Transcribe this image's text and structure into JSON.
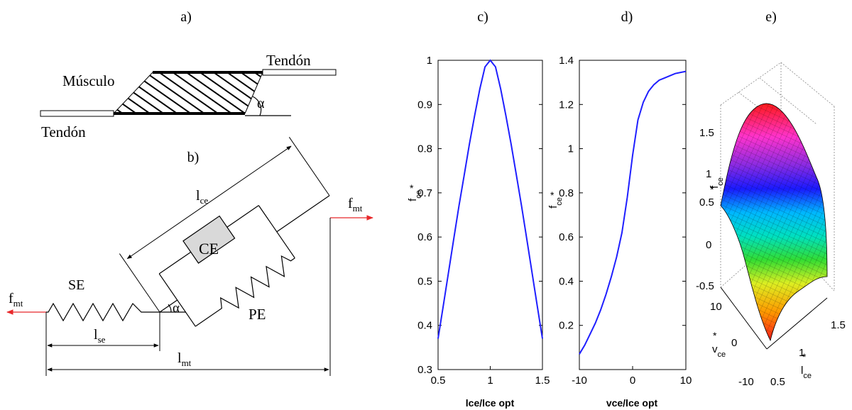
{
  "panels": {
    "a": {
      "label": "a)",
      "muscle_label": "Músculo",
      "tendon_right_label": "Tendón",
      "tendon_left_label": "Tendón",
      "angle_label": "α"
    },
    "b": {
      "label": "b)",
      "lce": {
        "main": "l",
        "sub": "ce"
      },
      "fmt_right": {
        "main": "f",
        "sub": "mt"
      },
      "fmt_left": {
        "main": "f",
        "sub": "mt"
      },
      "se_label": "SE",
      "ce_label": "CE",
      "pe_label": "PE",
      "angle_label": "α",
      "lse": {
        "main": "l",
        "sub": "se"
      },
      "lmt": {
        "main": "l",
        "sub": "mt"
      },
      "colors": {
        "force_arrow": "#e8282a",
        "ce_box": "#d9d9d9"
      }
    },
    "c": {
      "label": "c)",
      "xlabel": "lce/lce opt",
      "ylabel": {
        "main": "f",
        "sub": "ce",
        "sup": "*"
      },
      "xticks": [
        "0.5",
        "1",
        "1.5"
      ],
      "yticks": [
        "0.3",
        "0.4",
        "0.5",
        "0.6",
        "0.7",
        "0.8",
        "0.9",
        "1"
      ]
    },
    "d": {
      "label": "d)",
      "xlabel": "vce/lce opt",
      "ylabel": {
        "main": "f",
        "sub": "ce",
        "sup": "*"
      },
      "xticks": [
        "-10",
        "0",
        "10"
      ],
      "yticks": [
        "0.2",
        "0.4",
        "0.6",
        "0.8",
        "1",
        "1.2",
        "1.4"
      ]
    },
    "e": {
      "label": "e)",
      "zlabel": {
        "main": "f",
        "sub": "ce",
        "sup": "*"
      },
      "vlabel": {
        "main": "v",
        "sub": "ce",
        "sup": "*"
      },
      "llabel": {
        "main": "l",
        "sub": "ce",
        "sup": "*"
      },
      "zticks": [
        "1.5",
        "1",
        "0.5",
        "0",
        "-0.5"
      ],
      "vticks": [
        "10",
        "0",
        "-10"
      ],
      "lticks": [
        "1.5",
        "1",
        "0.5"
      ]
    }
  },
  "chart_data": [
    {
      "type": "line",
      "panel": "c",
      "xlabel": "lce/lce opt",
      "ylabel": "f*ce",
      "xlim": [
        0.5,
        1.5
      ],
      "ylim": [
        0.3,
        1.0
      ],
      "series": [
        {
          "x": [
            0.5,
            0.55,
            0.6,
            0.65,
            0.7,
            0.75,
            0.8,
            0.85,
            0.9,
            0.95,
            1.0,
            1.05,
            1.1,
            1.15,
            1.2,
            1.25,
            1.3,
            1.35,
            1.4,
            1.45,
            1.5
          ],
          "y": [
            0.37,
            0.445,
            0.52,
            0.595,
            0.67,
            0.74,
            0.81,
            0.875,
            0.935,
            0.985,
            1.0,
            0.985,
            0.935,
            0.875,
            0.81,
            0.74,
            0.67,
            0.595,
            0.52,
            0.445,
            0.37
          ]
        }
      ],
      "color": "#1f1fff"
    },
    {
      "type": "line",
      "panel": "d",
      "xlabel": "vce/lce opt",
      "ylabel": "f*ce",
      "xlim": [
        -10,
        10
      ],
      "ylim": [
        0.0,
        1.4
      ],
      "series": [
        {
          "x": [
            -10,
            -9,
            -8,
            -7,
            -6,
            -5,
            -4,
            -3,
            -2,
            -1,
            0,
            1,
            2,
            3,
            4,
            5,
            6,
            7,
            8,
            9,
            10
          ],
          "y": [
            0.07,
            0.11,
            0.16,
            0.21,
            0.27,
            0.34,
            0.42,
            0.51,
            0.62,
            0.78,
            0.97,
            1.13,
            1.21,
            1.26,
            1.29,
            1.31,
            1.32,
            1.33,
            1.34,
            1.345,
            1.35
          ]
        }
      ],
      "color": "#1f1fff"
    }
  ]
}
